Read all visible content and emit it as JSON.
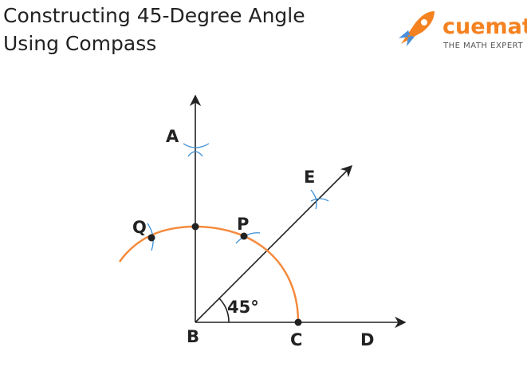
{
  "header": {
    "title_lines": [
      "Constructing 45-Degree Angle",
      "Using Compass"
    ]
  },
  "logo": {
    "brand": "cuemath",
    "tagline": "THE MATH EXPERT"
  },
  "points": {
    "A": "A",
    "B": "B",
    "C": "C",
    "D": "D",
    "E": "E",
    "P": "P",
    "Q": "Q"
  },
  "angle_label": "45°"
}
